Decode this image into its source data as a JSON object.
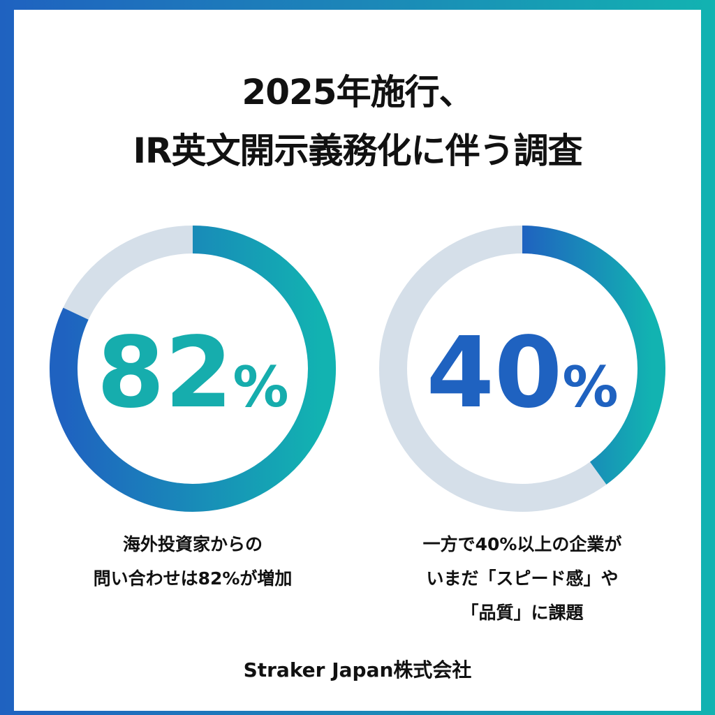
{
  "title": {
    "line1": "2025年施行、",
    "line2": "IR英文開示義務化に伴う調査"
  },
  "colors": {
    "blue": "#1f62c0",
    "teal": "#12b3b1",
    "track": "#d5dfe9"
  },
  "chart_data": [
    {
      "type": "pie",
      "variant": "donut",
      "values": [
        82,
        18
      ],
      "label": "82%",
      "value_text": "82",
      "unit": "%",
      "label_color": "#16adad",
      "caption": [
        "海外投資家からの",
        "問い合わせは82%が増加"
      ]
    },
    {
      "type": "pie",
      "variant": "donut",
      "values": [
        40,
        60
      ],
      "label": "40%",
      "value_text": "40",
      "unit": "%",
      "label_color": "#1f62c0",
      "caption": [
        "一方で40%以上の企業が",
        "いまだ「スピード感」や",
        "「品質」に課題"
      ]
    }
  ],
  "footer": "Straker Japan株式会社"
}
